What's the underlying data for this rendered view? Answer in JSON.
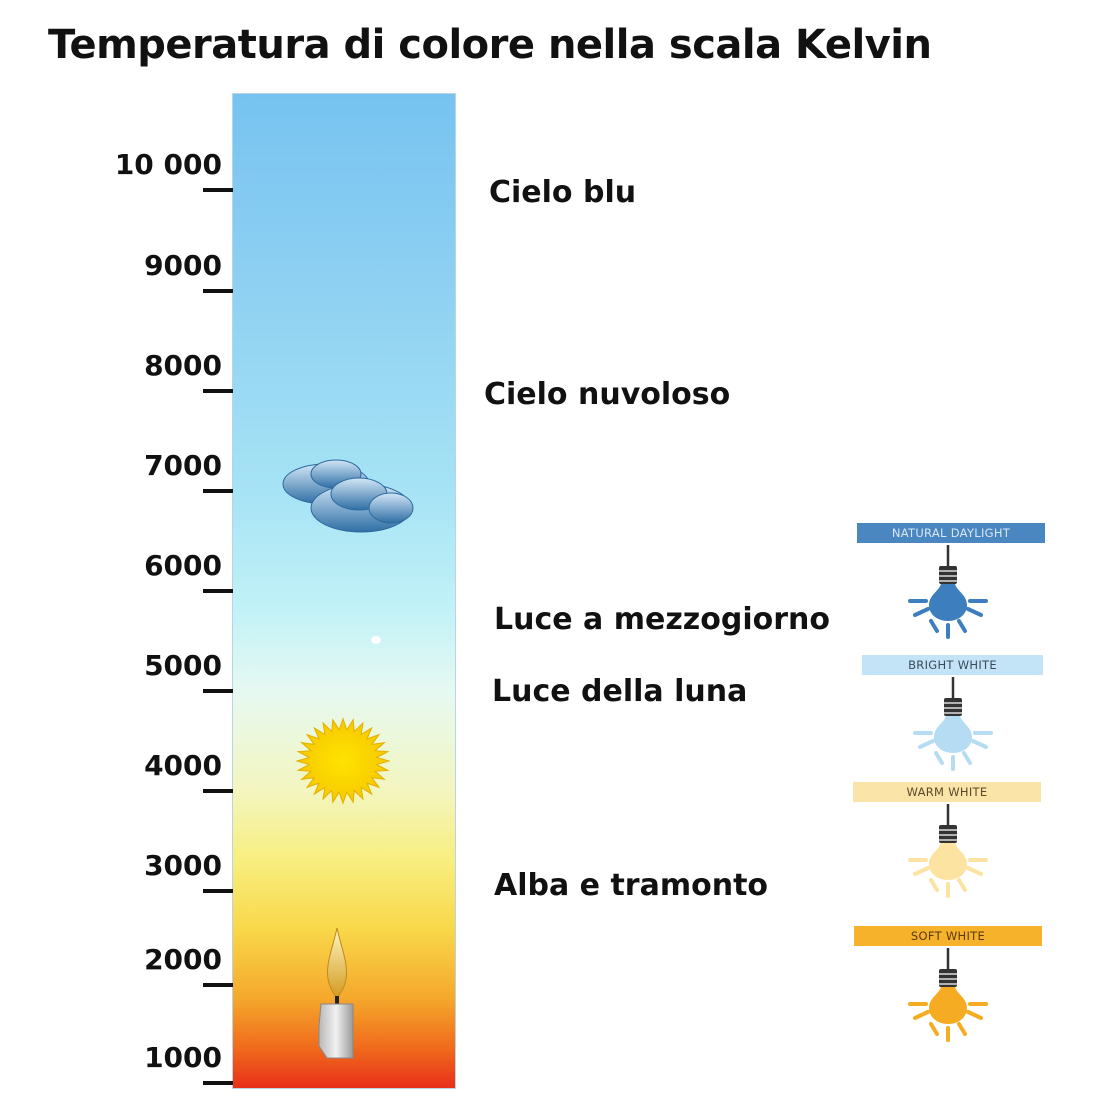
{
  "title": "Temperatura di colore nella scala Kelvin",
  "scale": {
    "unit": "K",
    "ticks": [
      {
        "value": 10000,
        "label": "10 000"
      },
      {
        "value": 9000,
        "label": "9000"
      },
      {
        "value": 8000,
        "label": "8000"
      },
      {
        "value": 7000,
        "label": "7000"
      },
      {
        "value": 6000,
        "label": "6000"
      },
      {
        "value": 5000,
        "label": "5000"
      },
      {
        "value": 4000,
        "label": "4000"
      },
      {
        "value": 3000,
        "label": "3000"
      },
      {
        "value": 2000,
        "label": "2000"
      },
      {
        "value": 1000,
        "label": "1000"
      }
    ],
    "icons": [
      "cloud-icon",
      "sun-icon",
      "candle-icon"
    ]
  },
  "labels": {
    "cielo_blu": "Cielo blu",
    "cielo_nuvoloso": "Cielo nuvoloso",
    "mezzogiorno": "Luce a mezzogiorno",
    "luna": "Luce della luna",
    "alba": "Alba e tramonto"
  },
  "bulbs": [
    {
      "label": "NATURAL DAYLIGHT",
      "bar_color": "#4a86bf",
      "text_color": "#d8e8f6",
      "bulb_color": "#3d7fbe"
    },
    {
      "label": "BRIGHT WHITE",
      "bar_color": "#c3e3f6",
      "text_color": "#3a4a5a",
      "bulb_color": "#b6dcf4"
    },
    {
      "label": "WARM WHITE",
      "bar_color": "#fbe4a8",
      "text_color": "#5a4a2a",
      "bulb_color": "#fde3a2"
    },
    {
      "label": "SOFT WHITE",
      "bar_color": "#f6b22a",
      "text_color": "#5a3a0a",
      "bulb_color": "#f5ac22"
    }
  ]
}
